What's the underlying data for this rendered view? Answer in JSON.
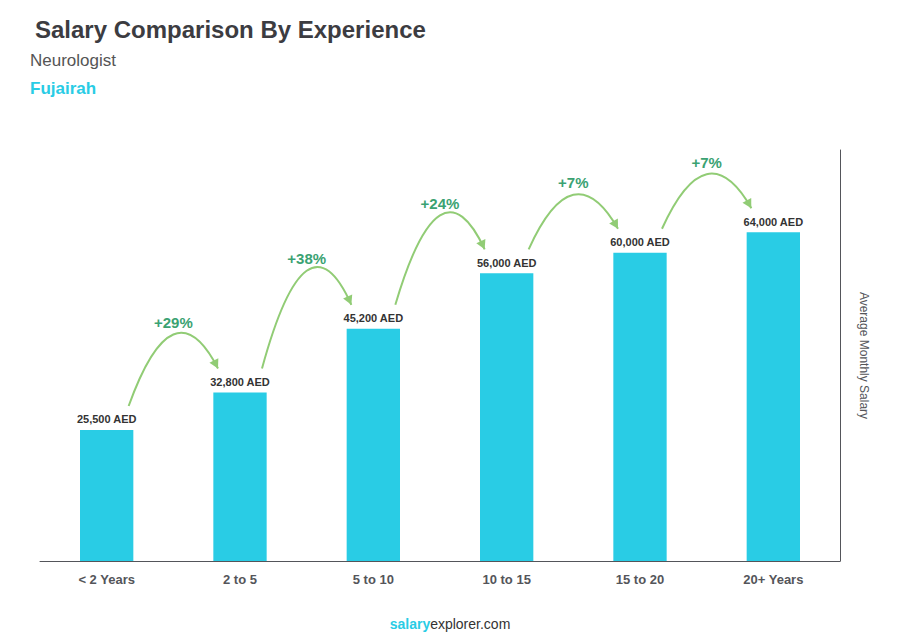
{
  "chart_data": {
    "type": "bar",
    "title": "Salary Comparison By Experience",
    "subtitle": "Neurologist",
    "city": "Fujairah",
    "ylabel": "Average Monthly Salary",
    "categories": [
      "< 2 Years",
      "2 to 5",
      "5 to 10",
      "10 to 15",
      "15 to 20",
      "20+ Years"
    ],
    "values": [
      25500,
      32800,
      45200,
      56000,
      60000,
      64000
    ],
    "value_labels": [
      "25,500 AED",
      "32,800 AED",
      "45,200 AED",
      "56,000 AED",
      "60,000 AED",
      "64,000 AED"
    ],
    "data_labels": true,
    "change_labels": [
      "+29%",
      "+38%",
      "+24%",
      "+7%",
      "+7%"
    ],
    "footer": [
      "salary",
      "explorer.com"
    ],
    "color": "#29cce5",
    "ylim": [
      0,
      80000
    ],
    "tick_labels": "x",
    "grid": false
  }
}
